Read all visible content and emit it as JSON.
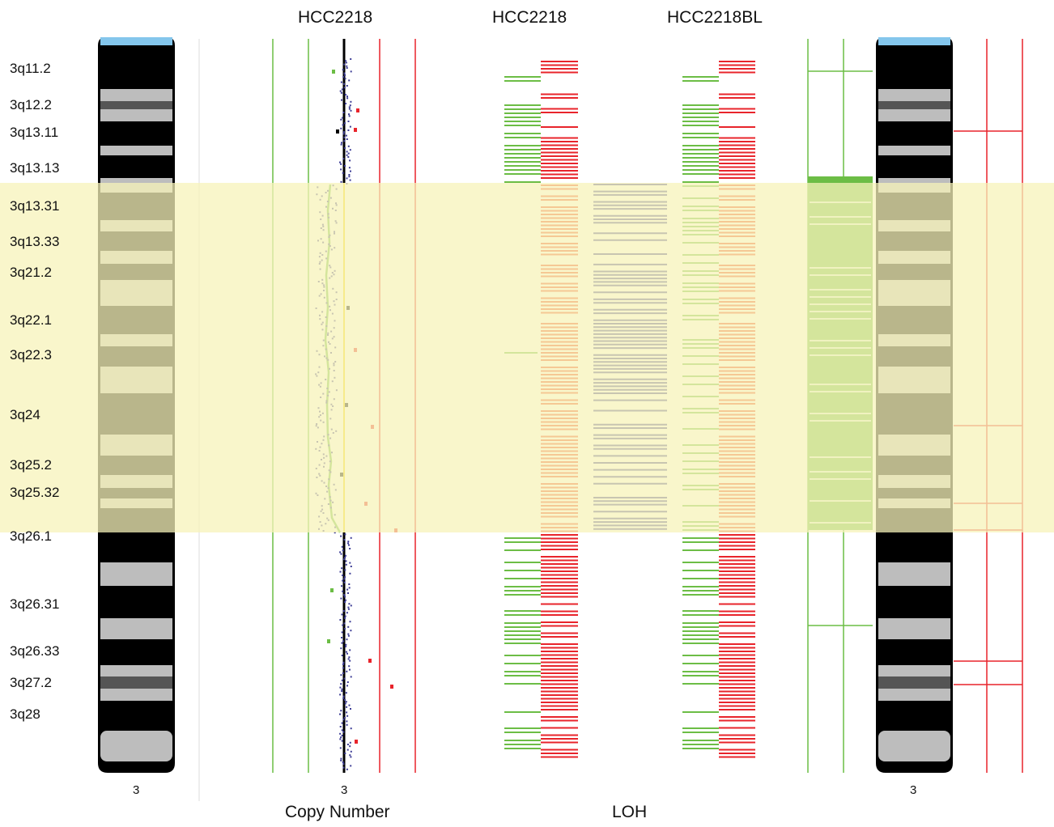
{
  "headers": {
    "cn_sample": "HCC2218",
    "loh_sample": "HCC2218",
    "loh_normal": "HCC2218BL"
  },
  "band_labels": [
    "3q11.2",
    "3q12.2",
    "3q13.11",
    "3q13.13",
    "3q13.31",
    "3q13.33",
    "3q21.2",
    "3q22.1",
    "3q22.3",
    "3q24",
    "3q25.2",
    "3q25.32",
    "3q26.1",
    "3q26.31",
    "3q26.33",
    "3q27.2",
    "3q28"
  ],
  "chromosome_labels": {
    "left": "3",
    "copy_number": "3",
    "right": "3"
  },
  "footer": {
    "copy_number": "Copy Number",
    "loh": "LOH"
  },
  "colors": {
    "highlight": "#f7f3b9",
    "green": "#6cbd45",
    "red": "#e8242b",
    "blue": "#3d3d96",
    "yellow_line": "#f5d200",
    "cap": "#84c6ec",
    "grey_band": "#bdbdbd",
    "dark_band": "#555555"
  },
  "highlighted_region": {
    "from_band": "3q13.31",
    "to_band": "3q25.32"
  }
}
